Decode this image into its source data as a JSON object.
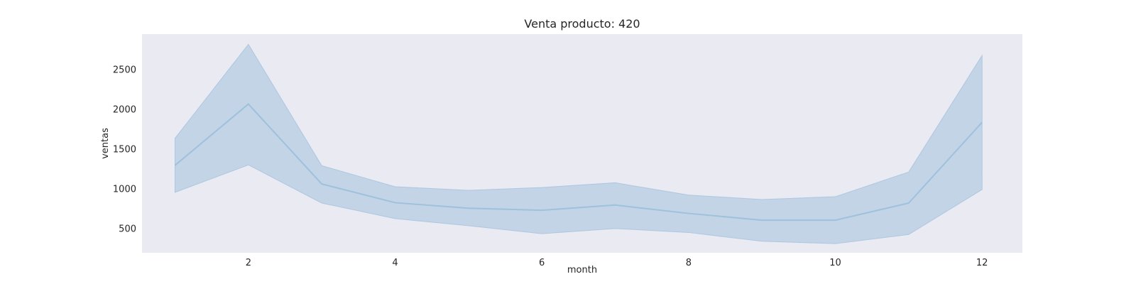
{
  "chart_data": {
    "type": "line",
    "title": "Venta producto: 420",
    "xlabel": "month",
    "ylabel": "ventas",
    "x": [
      1,
      2,
      3,
      4,
      5,
      6,
      7,
      8,
      9,
      10,
      11,
      12
    ],
    "series": [
      {
        "values": [
          1290,
          2060,
          1055,
          820,
          750,
          725,
          790,
          685,
          600,
          600,
          815,
          1830
        ],
        "lower": [
          950,
          1295,
          815,
          620,
          530,
          430,
          495,
          445,
          335,
          305,
          420,
          985
        ],
        "upper": [
          1630,
          2810,
          1285,
          1020,
          975,
          1010,
          1070,
          915,
          860,
          895,
          1205,
          2670
        ]
      }
    ],
    "xlim": [
      0.55,
      12.55
    ],
    "ylim": [
      190,
      2940
    ],
    "xticks": [
      2,
      4,
      6,
      8,
      10,
      12
    ],
    "yticks": [
      500,
      1000,
      1500,
      2000,
      2500
    ],
    "grid": false,
    "colors": {
      "line": "#9ec1dc",
      "band": "#a9c4df",
      "background": "#eaeaf2"
    }
  }
}
